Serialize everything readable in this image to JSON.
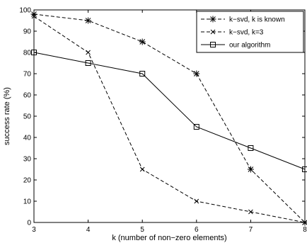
{
  "chart_data": {
    "type": "line",
    "title": "",
    "xlabel": "k (number of non−zero elements)",
    "ylabel": "success rate (%)",
    "xlim": [
      3,
      8
    ],
    "ylim": [
      0,
      100
    ],
    "xticks": [
      "3",
      "4",
      "5",
      "6",
      "7",
      "8"
    ],
    "yticks": [
      "0",
      "10",
      "20",
      "30",
      "40",
      "50",
      "60",
      "70",
      "80",
      "90",
      "100"
    ],
    "grid": false,
    "legend_position": "top-right",
    "x": [
      3,
      4,
      5,
      6,
      7,
      8
    ],
    "series": [
      {
        "name": "k−svd, k is known",
        "values": [
          98,
          95,
          85,
          70,
          25,
          0
        ],
        "line_style": "dashed",
        "marker": "asterisk",
        "color": "#000000"
      },
      {
        "name": "k−svd, k=3",
        "values": [
          97,
          80,
          25,
          10,
          5,
          0
        ],
        "line_style": "dashed",
        "marker": "x",
        "color": "#000000"
      },
      {
        "name": "our algorithm",
        "values": [
          80,
          75,
          70,
          45,
          35,
          25
        ],
        "line_style": "solid",
        "marker": "square",
        "color": "#000000"
      }
    ]
  }
}
